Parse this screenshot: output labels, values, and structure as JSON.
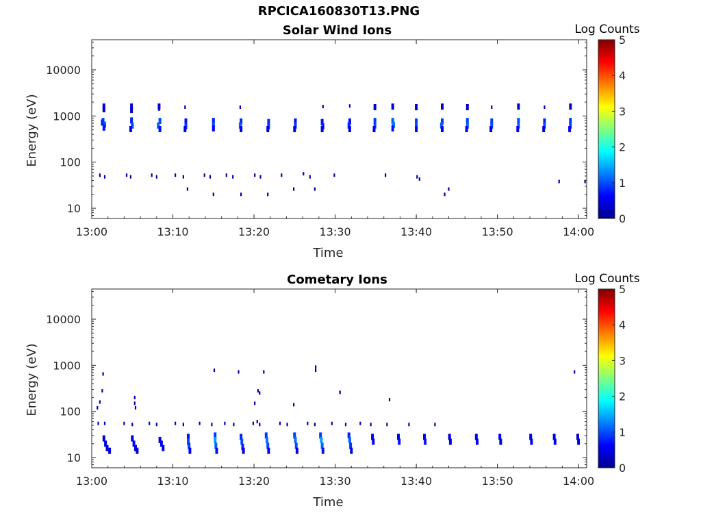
{
  "figure": {
    "title": "RPCICA160830T13.PNG"
  },
  "chart_data": [
    {
      "type": "heatmap",
      "title": "Solar Wind Ions",
      "xlabel": "Time",
      "ylabel": "Energy (eV)",
      "xlim": [
        0,
        61
      ],
      "ylim": [
        6,
        45000
      ],
      "yscale": "log",
      "xticks": [
        0,
        10,
        20,
        30,
        40,
        50,
        60
      ],
      "xtick_labels": [
        "13:00",
        "13:10",
        "13:20",
        "13:30",
        "13:40",
        "13:50",
        "14:00"
      ],
      "yticks": [
        10,
        100,
        1000,
        10000
      ],
      "ytick_labels": [
        "10",
        "100",
        "1000",
        "10000"
      ],
      "colorbar": {
        "label": "Log Counts",
        "min": 0,
        "max": 5,
        "ticks": [
          "0",
          "1",
          "2",
          "3",
          "4",
          "5"
        ]
      },
      "cells_columns": [
        "minute",
        "energy_eV",
        "log_counts"
      ],
      "cells": [
        [
          1.5,
          1600,
          0.4
        ],
        [
          1.5,
          1400,
          0.3
        ],
        [
          1.4,
          780,
          0.9
        ],
        [
          1.6,
          650,
          1.0
        ],
        [
          1.5,
          560,
          0.6
        ],
        [
          1.3,
          720,
          0.7
        ],
        [
          4.9,
          1600,
          0.4
        ],
        [
          4.9,
          1350,
          0.3
        ],
        [
          4.9,
          800,
          0.7
        ],
        [
          5.0,
          620,
          0.9
        ],
        [
          4.8,
          520,
          0.5
        ],
        [
          8.3,
          1600,
          0.3
        ],
        [
          8.3,
          1400,
          0.2
        ],
        [
          8.4,
          780,
          0.9
        ],
        [
          8.2,
          620,
          1.0
        ],
        [
          8.4,
          520,
          0.6
        ],
        [
          11.5,
          1550,
          0.2
        ],
        [
          11.6,
          760,
          0.6
        ],
        [
          11.6,
          600,
          0.8
        ],
        [
          11.5,
          520,
          0.5
        ],
        [
          15.0,
          780,
          0.7
        ],
        [
          15.0,
          630,
          0.9
        ],
        [
          15.0,
          540,
          0.5
        ],
        [
          18.3,
          1550,
          0.2
        ],
        [
          18.4,
          760,
          0.7
        ],
        [
          18.3,
          620,
          1.0
        ],
        [
          18.4,
          520,
          0.5
        ],
        [
          21.8,
          740,
          0.7
        ],
        [
          21.8,
          600,
          0.8
        ],
        [
          21.7,
          520,
          0.4
        ],
        [
          25.1,
          760,
          0.6
        ],
        [
          25.1,
          620,
          0.8
        ],
        [
          25.0,
          520,
          0.4
        ],
        [
          28.5,
          1600,
          0.2
        ],
        [
          28.4,
          740,
          0.6
        ],
        [
          28.5,
          600,
          0.7
        ],
        [
          28.4,
          520,
          0.4
        ],
        [
          31.8,
          1650,
          0.2
        ],
        [
          31.8,
          760,
          0.6
        ],
        [
          31.7,
          620,
          0.7
        ],
        [
          31.8,
          520,
          0.4
        ],
        [
          34.9,
          1550,
          0.3
        ],
        [
          34.9,
          780,
          0.8
        ],
        [
          34.9,
          620,
          0.9
        ],
        [
          34.8,
          520,
          0.4
        ],
        [
          37.1,
          1600,
          0.4
        ],
        [
          37.1,
          780,
          1.0
        ],
        [
          37.2,
          640,
          1.1
        ],
        [
          37.1,
          540,
          0.6
        ],
        [
          40.0,
          1550,
          0.3
        ],
        [
          40.0,
          760,
          0.8
        ],
        [
          40.0,
          620,
          0.9
        ],
        [
          40.0,
          520,
          0.5
        ],
        [
          43.2,
          1600,
          0.3
        ],
        [
          43.2,
          760,
          0.8
        ],
        [
          43.1,
          620,
          1.0
        ],
        [
          43.2,
          520,
          0.5
        ],
        [
          46.3,
          1550,
          0.3
        ],
        [
          46.3,
          780,
          0.9
        ],
        [
          46.3,
          620,
          1.0
        ],
        [
          46.2,
          520,
          0.5
        ],
        [
          49.3,
          1550,
          0.2
        ],
        [
          49.3,
          760,
          0.8
        ],
        [
          49.3,
          620,
          0.9
        ],
        [
          49.2,
          520,
          0.4
        ],
        [
          52.6,
          1600,
          0.3
        ],
        [
          52.6,
          780,
          0.9
        ],
        [
          52.6,
          620,
          1.0
        ],
        [
          52.5,
          520,
          0.5
        ],
        [
          55.8,
          1550,
          0.2
        ],
        [
          55.8,
          760,
          0.7
        ],
        [
          55.8,
          620,
          0.9
        ],
        [
          55.7,
          520,
          0.4
        ],
        [
          59.0,
          1600,
          0.3
        ],
        [
          59.0,
          780,
          0.8
        ],
        [
          59.0,
          620,
          0.9
        ],
        [
          58.9,
          520,
          0.5
        ],
        [
          1.0,
          52,
          0.1
        ],
        [
          1.6,
          48,
          0.1
        ],
        [
          4.3,
          52,
          0.1
        ],
        [
          4.8,
          48,
          0.1
        ],
        [
          7.4,
          52,
          0.1
        ],
        [
          8.0,
          48,
          0.1
        ],
        [
          10.3,
          52,
          0.1
        ],
        [
          11.3,
          48,
          0.1
        ],
        [
          11.8,
          26,
          0.1
        ],
        [
          13.9,
          52,
          0.1
        ],
        [
          14.6,
          48,
          0.1
        ],
        [
          15.0,
          20,
          0.1
        ],
        [
          16.6,
          52,
          0.1
        ],
        [
          17.4,
          48,
          0.1
        ],
        [
          18.4,
          20,
          0.1
        ],
        [
          20.1,
          52,
          0.1
        ],
        [
          20.8,
          48,
          0.1
        ],
        [
          21.7,
          20,
          0.1
        ],
        [
          23.4,
          52,
          0.1
        ],
        [
          24.9,
          26,
          0.1
        ],
        [
          26.1,
          56,
          0.1
        ],
        [
          26.9,
          48,
          0.1
        ],
        [
          27.5,
          26,
          0.1
        ],
        [
          29.9,
          52,
          0.1
        ],
        [
          36.2,
          52,
          0.1
        ],
        [
          40.1,
          48,
          0.1
        ],
        [
          40.4,
          43,
          0.1
        ],
        [
          43.5,
          20,
          0.1
        ],
        [
          44.0,
          26,
          0.1
        ],
        [
          57.6,
          38,
          0.1
        ],
        [
          60.8,
          38,
          0.1
        ]
      ]
    },
    {
      "type": "heatmap",
      "title": "Cometary Ions",
      "xlabel": "Time",
      "ylabel": "Energy (eV)",
      "xlim": [
        0,
        61
      ],
      "ylim": [
        6,
        45000
      ],
      "yscale": "log",
      "xticks": [
        0,
        10,
        20,
        30,
        40,
        50,
        60
      ],
      "xtick_labels": [
        "13:00",
        "13:10",
        "13:20",
        "13:30",
        "13:40",
        "13:50",
        "14:00"
      ],
      "yticks": [
        10,
        100,
        1000,
        10000
      ],
      "ytick_labels": [
        "10",
        "100",
        "1000",
        "10000"
      ],
      "colorbar": {
        "label": "Log Counts",
        "min": 0,
        "max": 5,
        "ticks": [
          "0",
          "1",
          "2",
          "3",
          "4",
          "5"
        ]
      },
      "cells_columns": [
        "minute",
        "energy_eV",
        "log_counts"
      ],
      "cells": [
        [
          1.4,
          650,
          0.1
        ],
        [
          1.3,
          280,
          0.1
        ],
        [
          1.0,
          160,
          0.1
        ],
        [
          0.7,
          120,
          0.1
        ],
        [
          5.3,
          200,
          0.1
        ],
        [
          5.3,
          150,
          0.1
        ],
        [
          5.4,
          120,
          0.1
        ],
        [
          15.1,
          780,
          0.1
        ],
        [
          18.1,
          720,
          0.1
        ],
        [
          20.5,
          280,
          0.1
        ],
        [
          20.7,
          250,
          0.1
        ],
        [
          21.2,
          720,
          0.1
        ],
        [
          20.1,
          150,
          0.1
        ],
        [
          24.9,
          140,
          0.1
        ],
        [
          27.6,
          920,
          0.2
        ],
        [
          27.6,
          780,
          0.1
        ],
        [
          30.6,
          260,
          0.1
        ],
        [
          36.7,
          180,
          0.1
        ],
        [
          59.5,
          720,
          0.1
        ],
        [
          20.4,
          60,
          0.1
        ],
        [
          0.8,
          55,
          0.2
        ],
        [
          1.6,
          55,
          0.2
        ],
        [
          4.0,
          55,
          0.2
        ],
        [
          5.0,
          52,
          0.2
        ],
        [
          7.1,
          55,
          0.2
        ],
        [
          8.0,
          52,
          0.2
        ],
        [
          10.3,
          55,
          0.2
        ],
        [
          11.3,
          52,
          0.2
        ],
        [
          13.3,
          55,
          0.2
        ],
        [
          14.8,
          52,
          0.2
        ],
        [
          16.4,
          55,
          0.2
        ],
        [
          17.5,
          52,
          0.2
        ],
        [
          19.9,
          55,
          0.2
        ],
        [
          20.7,
          52,
          0.2
        ],
        [
          23.2,
          55,
          0.2
        ],
        [
          24.1,
          52,
          0.2
        ],
        [
          26.6,
          55,
          0.2
        ],
        [
          27.5,
          52,
          0.2
        ],
        [
          29.6,
          55,
          0.2
        ],
        [
          31.3,
          52,
          0.2
        ],
        [
          33.1,
          55,
          0.2
        ],
        [
          34.4,
          52,
          0.2
        ],
        [
          36.4,
          52,
          0.2
        ],
        [
          39.1,
          52,
          0.2
        ],
        [
          42.3,
          52,
          0.2
        ],
        [
          1.5,
          26,
          0.3
        ],
        [
          1.7,
          20,
          0.4
        ],
        [
          1.9,
          16,
          0.4
        ],
        [
          2.2,
          14,
          0.3
        ],
        [
          5.0,
          26,
          0.4
        ],
        [
          5.2,
          20,
          0.5
        ],
        [
          5.4,
          16,
          0.4
        ],
        [
          5.6,
          14,
          0.3
        ],
        [
          8.4,
          24,
          0.5
        ],
        [
          8.6,
          20,
          0.5
        ],
        [
          8.8,
          16,
          0.4
        ],
        [
          11.9,
          28,
          0.6
        ],
        [
          11.9,
          22,
          0.9
        ],
        [
          12.0,
          18,
          0.8
        ],
        [
          12.1,
          14,
          0.5
        ],
        [
          15.2,
          30,
          0.8
        ],
        [
          15.2,
          24,
          1.3
        ],
        [
          15.3,
          18,
          1.0
        ],
        [
          15.4,
          14,
          0.6
        ],
        [
          18.4,
          28,
          0.7
        ],
        [
          18.5,
          22,
          0.9
        ],
        [
          18.6,
          17,
          0.7
        ],
        [
          18.7,
          14,
          0.4
        ],
        [
          21.5,
          30,
          0.8
        ],
        [
          21.6,
          24,
          1.1
        ],
        [
          21.7,
          18,
          0.9
        ],
        [
          21.8,
          14,
          0.5
        ],
        [
          25.0,
          30,
          0.8
        ],
        [
          25.1,
          24,
          1.1
        ],
        [
          25.2,
          18,
          0.9
        ],
        [
          25.3,
          14,
          0.5
        ],
        [
          28.2,
          30,
          0.8
        ],
        [
          28.3,
          24,
          1.3
        ],
        [
          28.4,
          18,
          1.0
        ],
        [
          28.5,
          14,
          0.6
        ],
        [
          31.7,
          30,
          0.7
        ],
        [
          31.8,
          24,
          1.0
        ],
        [
          31.9,
          18,
          0.8
        ],
        [
          32.0,
          14,
          0.4
        ],
        [
          34.6,
          28,
          0.4
        ],
        [
          34.7,
          22,
          0.5
        ],
        [
          37.8,
          28,
          0.4
        ],
        [
          37.9,
          22,
          0.6
        ],
        [
          41.0,
          28,
          0.5
        ],
        [
          41.1,
          22,
          0.6
        ],
        [
          44.1,
          28,
          0.3
        ],
        [
          44.2,
          22,
          0.4
        ],
        [
          47.4,
          28,
          0.4
        ],
        [
          47.5,
          22,
          0.5
        ],
        [
          50.3,
          28,
          0.4
        ],
        [
          50.4,
          22,
          0.4
        ],
        [
          54.1,
          28,
          0.4
        ],
        [
          54.2,
          22,
          0.5
        ],
        [
          57.0,
          28,
          0.4
        ],
        [
          57.1,
          22,
          0.5
        ],
        [
          59.9,
          28,
          0.3
        ],
        [
          60.0,
          22,
          0.4
        ]
      ]
    }
  ]
}
